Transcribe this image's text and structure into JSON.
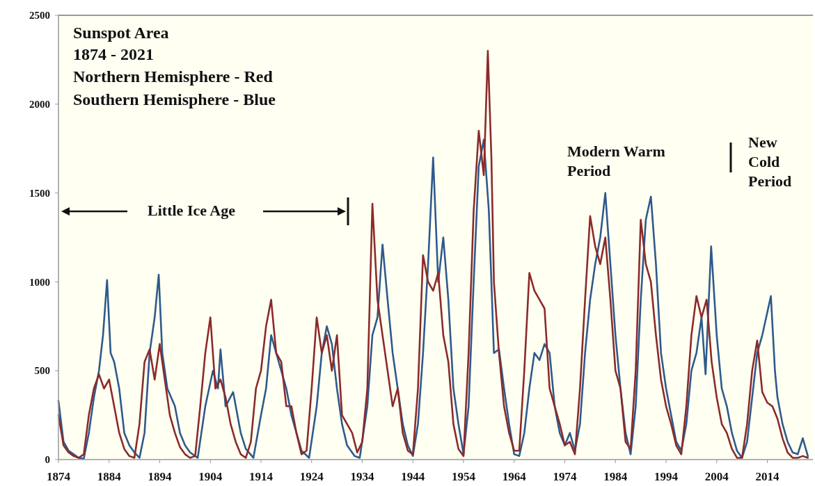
{
  "chart_data": {
    "type": "line",
    "title": "Sunspot Area",
    "subtitle": "1874 - 2021",
    "annotations": [
      "Northern Hemisphere - Red",
      "Southern Hemisphere - Blue",
      "Little Ice Age",
      "Modern Warm Period",
      "New Cold Period"
    ],
    "xlim": [
      1874,
      2023
    ],
    "xticks": [
      1874,
      1884,
      1894,
      1904,
      1914,
      1924,
      1934,
      1944,
      1954,
      1964,
      1974,
      1984,
      1994,
      2004,
      2014
    ],
    "ylim": [
      0,
      2500
    ],
    "yticks": [
      0,
      500,
      1000,
      1500,
      2000,
      2500
    ],
    "grid": false,
    "marker": "none",
    "line_style": "solid",
    "series": [
      {
        "color": "#2e5a8c",
        "x": [
          1874,
          1875,
          1876,
          1877,
          1878,
          1879,
          1880,
          1881,
          1882,
          1882.8,
          1883.6,
          1884.3,
          1885,
          1886,
          1887,
          1888,
          1889,
          1890,
          1891,
          1892,
          1893,
          1893.8,
          1894.5,
          1895.5,
          1897,
          1898,
          1899,
          1900,
          1901.5,
          1903,
          1904.5,
          1905.5,
          1906,
          1907,
          1908.5,
          1910,
          1911,
          1912.5,
          1914,
          1915,
          1916,
          1917,
          1918,
          1919,
          1920,
          1921,
          1922,
          1923.5,
          1925,
          1926,
          1927,
          1928,
          1929,
          1930,
          1931,
          1932.5,
          1933.5,
          1935,
          1936,
          1937,
          1938,
          1939,
          1940,
          1941,
          1942,
          1943,
          1944,
          1945,
          1946,
          1947,
          1948,
          1949,
          1950,
          1951,
          1952,
          1953,
          1954,
          1955,
          1956,
          1957,
          1958,
          1959,
          1960,
          1961,
          1962,
          1963,
          1964,
          1965,
          1966,
          1967,
          1968,
          1969,
          1970,
          1971,
          1972,
          1973,
          1974,
          1975,
          1976,
          1977,
          1978,
          1979,
          1980,
          1981,
          1982,
          1983,
          1984,
          1985,
          1986,
          1987,
          1988,
          1989,
          1990,
          1991,
          1992,
          1993,
          1994,
          1995,
          1996,
          1997,
          1998,
          1999,
          2000,
          2001,
          2001.8,
          2002.9,
          2004,
          2005,
          2006,
          2007,
          2008,
          2009,
          2010,
          2011,
          2012,
          2013,
          2014.7,
          2015.5,
          2016,
          2017,
          2018,
          2019,
          2020,
          2021,
          2022
        ],
        "values": [
          330,
          100,
          50,
          30,
          10,
          5,
          150,
          350,
          500,
          700,
          1010,
          600,
          550,
          400,
          150,
          80,
          40,
          10,
          150,
          600,
          800,
          1040,
          600,
          400,
          300,
          150,
          80,
          40,
          10,
          300,
          500,
          400,
          620,
          300,
          380,
          150,
          60,
          10,
          250,
          400,
          700,
          600,
          500,
          400,
          250,
          150,
          50,
          10,
          300,
          600,
          750,
          650,
          400,
          200,
          80,
          20,
          10,
          300,
          700,
          800,
          1210,
          900,
          600,
          400,
          200,
          80,
          20,
          200,
          600,
          1100,
          1700,
          1000,
          1250,
          900,
          400,
          200,
          30,
          300,
          1000,
          1650,
          1800,
          1400,
          600,
          620,
          400,
          200,
          30,
          20,
          150,
          400,
          600,
          560,
          650,
          600,
          300,
          150,
          80,
          150,
          50,
          200,
          600,
          900,
          1100,
          1250,
          1500,
          1100,
          700,
          400,
          150,
          30,
          300,
          900,
          1350,
          1480,
          1100,
          600,
          400,
          250,
          100,
          50,
          200,
          500,
          600,
          800,
          480,
          1200,
          700,
          400,
          300,
          150,
          50,
          10,
          100,
          350,
          600,
          700,
          920,
          500,
          350,
          200,
          100,
          40,
          30,
          120,
          20
        ]
      },
      {
        "color": "#8b2a2a",
        "x": [
          1874,
          1875,
          1876,
          1877,
          1878,
          1879,
          1880,
          1881,
          1882,
          1883,
          1884,
          1885,
          1886,
          1887,
          1888,
          1889,
          1890,
          1891,
          1892,
          1893,
          1894,
          1895,
          1896,
          1897,
          1898,
          1899,
          1900,
          1901,
          1902,
          1903,
          1904,
          1905,
          1906,
          1907,
          1908,
          1909,
          1910,
          1911,
          1912,
          1913,
          1914,
          1915,
          1916,
          1917,
          1918,
          1919,
          1920,
          1921,
          1922,
          1923,
          1924,
          1925,
          1926,
          1927,
          1928,
          1929,
          1930,
          1931,
          1932,
          1933,
          1934,
          1935,
          1936,
          1937,
          1938,
          1939,
          1940,
          1941,
          1942,
          1943,
          1944,
          1945,
          1946,
          1947,
          1948,
          1949,
          1950,
          1951,
          1952,
          1953,
          1954,
          1955,
          1956,
          1957,
          1958,
          1958.8,
          1959.5,
          1960,
          1961,
          1962,
          1963,
          1964,
          1965,
          1966,
          1967,
          1968,
          1969,
          1970,
          1971,
          1972,
          1973,
          1974,
          1975,
          1976,
          1977,
          1978,
          1979,
          1980,
          1981,
          1982,
          1983,
          1984,
          1985,
          1986,
          1987,
          1988,
          1989,
          1990,
          1991,
          1992,
          1993,
          1994,
          1995,
          1996,
          1997,
          1998,
          1999,
          2000,
          2001,
          2002,
          2003,
          2004,
          2005,
          2006,
          2007,
          2008,
          2009,
          2010,
          2011,
          2012,
          2013,
          2014,
          2015,
          2016,
          2017,
          2018,
          2019,
          2020,
          2021,
          2022
        ],
        "values": [
          250,
          80,
          40,
          20,
          10,
          30,
          250,
          400,
          480,
          400,
          450,
          300,
          150,
          60,
          20,
          10,
          200,
          550,
          620,
          450,
          650,
          450,
          250,
          150,
          70,
          30,
          10,
          20,
          300,
          600,
          800,
          400,
          450,
          350,
          200,
          100,
          30,
          10,
          100,
          400,
          500,
          750,
          900,
          600,
          550,
          300,
          300,
          150,
          30,
          50,
          400,
          800,
          600,
          700,
          500,
          700,
          250,
          200,
          150,
          40,
          100,
          400,
          1440,
          900,
          700,
          500,
          300,
          400,
          150,
          50,
          30,
          400,
          1150,
          1000,
          950,
          1050,
          700,
          550,
          200,
          60,
          20,
          600,
          1400,
          1850,
          1600,
          2300,
          1700,
          1000,
          600,
          300,
          150,
          50,
          50,
          500,
          1050,
          950,
          900,
          850,
          400,
          300,
          200,
          80,
          100,
          30,
          400,
          900,
          1370,
          1200,
          1100,
          1250,
          900,
          500,
          400,
          100,
          60,
          500,
          1350,
          1100,
          1000,
          700,
          450,
          300,
          200,
          80,
          30,
          300,
          700,
          920,
          800,
          900,
          550,
          350,
          200,
          150,
          60,
          10,
          10,
          200,
          500,
          670,
          380,
          320,
          300,
          230,
          120,
          40,
          10,
          10,
          20,
          10
        ]
      }
    ]
  }
}
